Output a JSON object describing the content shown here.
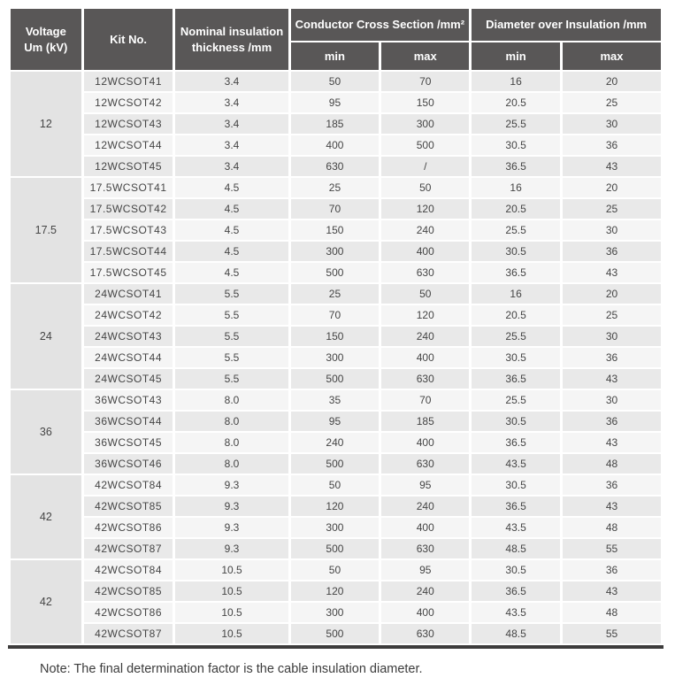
{
  "table": {
    "headers": {
      "voltage": "Voltage\nUm (kV)",
      "kit_no": "Kit No.",
      "thickness": "Nominal insulation\nthickness /mm",
      "conductor_cross_section": "Conductor Cross Section /mm²",
      "diameter_over_insulation": "Diameter over Insulation /mm",
      "ccs_min": "min",
      "ccs_max": "max",
      "doi_min": "min",
      "doi_max": "max"
    },
    "groups": [
      {
        "voltage": "12",
        "rows": [
          [
            "12WCSOT41",
            "3.4",
            "50",
            "70",
            "16",
            "20"
          ],
          [
            "12WCSOT42",
            "3.4",
            "95",
            "150",
            "20.5",
            "25"
          ],
          [
            "12WCSOT43",
            "3.4",
            "185",
            "300",
            "25.5",
            "30"
          ],
          [
            "12WCSOT44",
            "3.4",
            "400",
            "500",
            "30.5",
            "36"
          ],
          [
            "12WCSOT45",
            "3.4",
            "630",
            "/",
            "36.5",
            "43"
          ]
        ]
      },
      {
        "voltage": "17.5",
        "rows": [
          [
            "17.5WCSOT41",
            "4.5",
            "25",
            "50",
            "16",
            "20"
          ],
          [
            "17.5WCSOT42",
            "4.5",
            "70",
            "120",
            "20.5",
            "25"
          ],
          [
            "17.5WCSOT43",
            "4.5",
            "150",
            "240",
            "25.5",
            "30"
          ],
          [
            "17.5WCSOT44",
            "4.5",
            "300",
            "400",
            "30.5",
            "36"
          ],
          [
            "17.5WCSOT45",
            "4.5",
            "500",
            "630",
            "36.5",
            "43"
          ]
        ]
      },
      {
        "voltage": "24",
        "rows": [
          [
            "24WCSOT41",
            "5.5",
            "25",
            "50",
            "16",
            "20"
          ],
          [
            "24WCSOT42",
            "5.5",
            "70",
            "120",
            "20.5",
            "25"
          ],
          [
            "24WCSOT43",
            "5.5",
            "150",
            "240",
            "25.5",
            "30"
          ],
          [
            "24WCSOT44",
            "5.5",
            "300",
            "400",
            "30.5",
            "36"
          ],
          [
            "24WCSOT45",
            "5.5",
            "500",
            "630",
            "36.5",
            "43"
          ]
        ]
      },
      {
        "voltage": "36",
        "rows": [
          [
            "36WCSOT43",
            "8.0",
            "35",
            "70",
            "25.5",
            "30"
          ],
          [
            "36WCSOT44",
            "8.0",
            "95",
            "185",
            "30.5",
            "36"
          ],
          [
            "36WCSOT45",
            "8.0",
            "240",
            "400",
            "36.5",
            "43"
          ],
          [
            "36WCSOT46",
            "8.0",
            "500",
            "630",
            "43.5",
            "48"
          ]
        ]
      },
      {
        "voltage": "42",
        "rows": [
          [
            "42WCSOT84",
            "9.3",
            "50",
            "95",
            "30.5",
            "36"
          ],
          [
            "42WCSOT85",
            "9.3",
            "120",
            "240",
            "36.5",
            "43"
          ],
          [
            "42WCSOT86",
            "9.3",
            "300",
            "400",
            "43.5",
            "48"
          ],
          [
            "42WCSOT87",
            "9.3",
            "500",
            "630",
            "48.5",
            "55"
          ]
        ]
      },
      {
        "voltage": "42",
        "rows": [
          [
            "42WCSOT84",
            "10.5",
            "50",
            "95",
            "30.5",
            "36"
          ],
          [
            "42WCSOT85",
            "10.5",
            "120",
            "240",
            "36.5",
            "43"
          ],
          [
            "42WCSOT86",
            "10.5",
            "300",
            "400",
            "43.5",
            "48"
          ],
          [
            "42WCSOT87",
            "10.5",
            "500",
            "630",
            "48.5",
            "55"
          ]
        ]
      }
    ],
    "note": "Note: The final determination factor is the cable insulation diameter."
  },
  "colors": {
    "header_bg": "#595757",
    "header_text": "#ffffff",
    "row_odd_bg": "#e9e9e9",
    "row_even_bg": "#f5f5f5",
    "voltage_cell_bg": "#e3e3e3",
    "body_text": "#454545",
    "bottom_rule": "#3d3c3c"
  }
}
